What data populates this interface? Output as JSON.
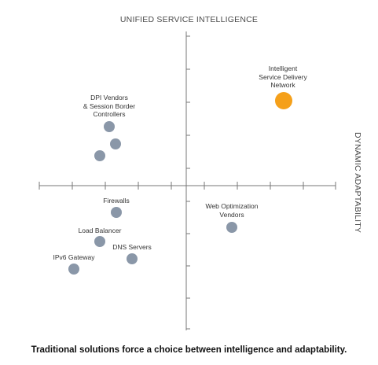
{
  "diagram": {
    "y_axis_label": "UNIFIED SERVICE INTELLIGENCE",
    "x_axis_label": "DYNAMIC ADAPTABILITY",
    "caption": "Traditional solutions force a choice between intelligence and adaptability.",
    "colors": {
      "axis": "#777777",
      "vendor_dot": "#8a97a8",
      "highlight_dot": "#f5a01a"
    },
    "labels": {
      "intelligent_sdn": [
        "Intelligent",
        "Service Delivery",
        "Network"
      ],
      "dpi_vendors": [
        "DPI Vendors",
        "& Session Border",
        "Controllers"
      ],
      "web_optimization": [
        "Web Optimization",
        "Vendors"
      ],
      "firewalls": "Firewalls",
      "load_balancer": "Load Balancer",
      "dns_servers": "DNS Servers",
      "ipv6_gateway": "IPv6 Gateway"
    }
  }
}
